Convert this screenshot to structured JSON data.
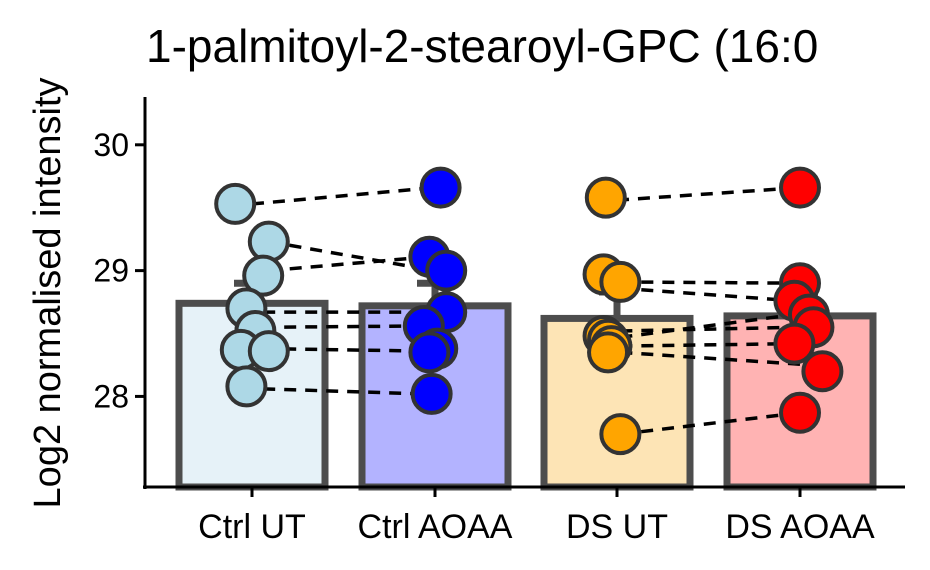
{
  "chart_data": {
    "type": "bar",
    "title": "1-palmitoyl-2-stearoyl-GPC (16:0",
    "xlabel": "",
    "ylabel": "Log2 normalised intensity",
    "categories": [
      "Ctrl UT",
      "Ctrl AOAA",
      "DS UT",
      "DS AOAA"
    ],
    "bar_values": [
      28.74,
      28.72,
      28.62,
      28.64
    ],
    "error_upper": [
      28.9,
      28.9,
      28.83,
      28.83
    ],
    "ylim": [
      27.28,
      30.38
    ],
    "yticks": [
      28,
      29,
      30
    ],
    "grid": false,
    "legend": "none",
    "bar_fill_colors": [
      "#e6f2f8",
      "#b3b3ff",
      "#fde4b5",
      "#ffb3b3"
    ],
    "point_colors": [
      "#add8e6",
      "#0000ff",
      "#ffa500",
      "#ff0000"
    ],
    "bar_stroke_color": "#4d4d4d",
    "points": [
      {
        "category": "Ctrl UT",
        "jitter": -0.15,
        "value": 29.53
      },
      {
        "category": "Ctrl UT",
        "jitter": 0.15,
        "value": 29.23
      },
      {
        "category": "Ctrl UT",
        "jitter": 0.1,
        "value": 28.96
      },
      {
        "category": "Ctrl UT",
        "jitter": -0.05,
        "value": 28.7
      },
      {
        "category": "Ctrl UT",
        "jitter": 0.03,
        "value": 28.52
      },
      {
        "category": "Ctrl UT",
        "jitter": -0.1,
        "value": 28.37
      },
      {
        "category": "Ctrl UT",
        "jitter": 0.15,
        "value": 28.36
      },
      {
        "category": "Ctrl UT",
        "jitter": -0.05,
        "value": 28.08
      },
      {
        "category": "Ctrl AOAA",
        "jitter": 0.05,
        "value": 29.66
      },
      {
        "category": "Ctrl AOAA",
        "jitter": -0.05,
        "value": 29.11
      },
      {
        "category": "Ctrl AOAA",
        "jitter": 0.1,
        "value": 29.0
      },
      {
        "category": "Ctrl AOAA",
        "jitter": 0.1,
        "value": 28.67
      },
      {
        "category": "Ctrl AOAA",
        "jitter": -0.1,
        "value": 28.56
      },
      {
        "category": "Ctrl AOAA",
        "jitter": 0.02,
        "value": 28.38
      },
      {
        "category": "Ctrl AOAA",
        "jitter": -0.05,
        "value": 28.35
      },
      {
        "category": "Ctrl AOAA",
        "jitter": -0.03,
        "value": 28.02
      },
      {
        "category": "DS UT",
        "jitter": -0.1,
        "value": 29.58
      },
      {
        "category": "DS UT",
        "jitter": -0.12,
        "value": 28.97
      },
      {
        "category": "DS UT",
        "jitter": 0.03,
        "value": 28.91
      },
      {
        "category": "DS UT",
        "jitter": -0.12,
        "value": 28.48
      },
      {
        "category": "DS UT",
        "jitter": -0.08,
        "value": 28.45
      },
      {
        "category": "DS UT",
        "jitter": -0.05,
        "value": 28.4
      },
      {
        "category": "DS UT",
        "jitter": -0.08,
        "value": 28.35
      },
      {
        "category": "DS UT",
        "jitter": 0.03,
        "value": 27.7
      },
      {
        "category": "DS AOAA",
        "jitter": 0.0,
        "value": 29.66
      },
      {
        "category": "DS AOAA",
        "jitter": 0.0,
        "value": 28.9
      },
      {
        "category": "DS AOAA",
        "jitter": -0.05,
        "value": 28.76
      },
      {
        "category": "DS AOAA",
        "jitter": 0.08,
        "value": 28.65
      },
      {
        "category": "DS AOAA",
        "jitter": 0.12,
        "value": 28.55
      },
      {
        "category": "DS AOAA",
        "jitter": -0.05,
        "value": 28.42
      },
      {
        "category": "DS AOAA",
        "jitter": 0.2,
        "value": 28.2
      },
      {
        "category": "DS AOAA",
        "jitter": 0.0,
        "value": 27.87
      }
    ],
    "pairs": [
      {
        "from": {
          "category": "Ctrl UT",
          "jitter": 0.0,
          "value": 29.53
        },
        "to": {
          "category": "Ctrl AOAA",
          "jitter": 0.0,
          "value": 29.66
        }
      },
      {
        "from": {
          "category": "Ctrl UT",
          "jitter": 0.15,
          "value": 29.23
        },
        "to": {
          "category": "Ctrl AOAA",
          "jitter": 0.0,
          "value": 29.0
        }
      },
      {
        "from": {
          "category": "Ctrl UT",
          "jitter": 0.15,
          "value": 29.0
        },
        "to": {
          "category": "Ctrl AOAA",
          "jitter": -0.05,
          "value": 29.11
        }
      },
      {
        "from": {
          "category": "Ctrl UT",
          "jitter": 0.1,
          "value": 28.67
        },
        "to": {
          "category": "Ctrl AOAA",
          "jitter": 0.0,
          "value": 28.67
        }
      },
      {
        "from": {
          "category": "Ctrl UT",
          "jitter": 0.1,
          "value": 28.55
        },
        "to": {
          "category": "Ctrl AOAA",
          "jitter": -0.05,
          "value": 28.56
        }
      },
      {
        "from": {
          "category": "Ctrl UT",
          "jitter": 0.1,
          "value": 28.38
        },
        "to": {
          "category": "Ctrl AOAA",
          "jitter": -0.05,
          "value": 28.36
        }
      },
      {
        "from": {
          "category": "Ctrl UT",
          "jitter": 0.1,
          "value": 28.06
        },
        "to": {
          "category": "Ctrl AOAA",
          "jitter": -0.1,
          "value": 28.02
        }
      },
      {
        "from": {
          "category": "DS UT",
          "jitter": 0.0,
          "value": 29.56
        },
        "to": {
          "category": "DS AOAA",
          "jitter": 0.0,
          "value": 29.66
        }
      },
      {
        "from": {
          "category": "DS UT",
          "jitter": 0.03,
          "value": 28.91
        },
        "to": {
          "category": "DS AOAA",
          "jitter": 0.0,
          "value": 28.9
        }
      },
      {
        "from": {
          "category": "DS UT",
          "jitter": 0.03,
          "value": 28.86
        },
        "to": {
          "category": "DS AOAA",
          "jitter": -0.05,
          "value": 28.76
        }
      },
      {
        "from": {
          "category": "DS UT",
          "jitter": 0.03,
          "value": 28.52
        },
        "to": {
          "category": "DS AOAA",
          "jitter": 0.0,
          "value": 28.55
        }
      },
      {
        "from": {
          "category": "DS UT",
          "jitter": 0.03,
          "value": 28.47
        },
        "to": {
          "category": "DS AOAA",
          "jitter": -0.05,
          "value": 28.65
        }
      },
      {
        "from": {
          "category": "DS UT",
          "jitter": 0.03,
          "value": 28.4
        },
        "to": {
          "category": "DS AOAA",
          "jitter": 0.0,
          "value": 28.42
        }
      },
      {
        "from": {
          "category": "DS UT",
          "jitter": 0.03,
          "value": 28.35
        },
        "to": {
          "category": "DS AOAA",
          "jitter": 0.1,
          "value": 28.25
        }
      },
      {
        "from": {
          "category": "DS UT",
          "jitter": 0.03,
          "value": 27.7
        },
        "to": {
          "category": "DS AOAA",
          "jitter": 0.0,
          "value": 27.87
        }
      }
    ]
  }
}
